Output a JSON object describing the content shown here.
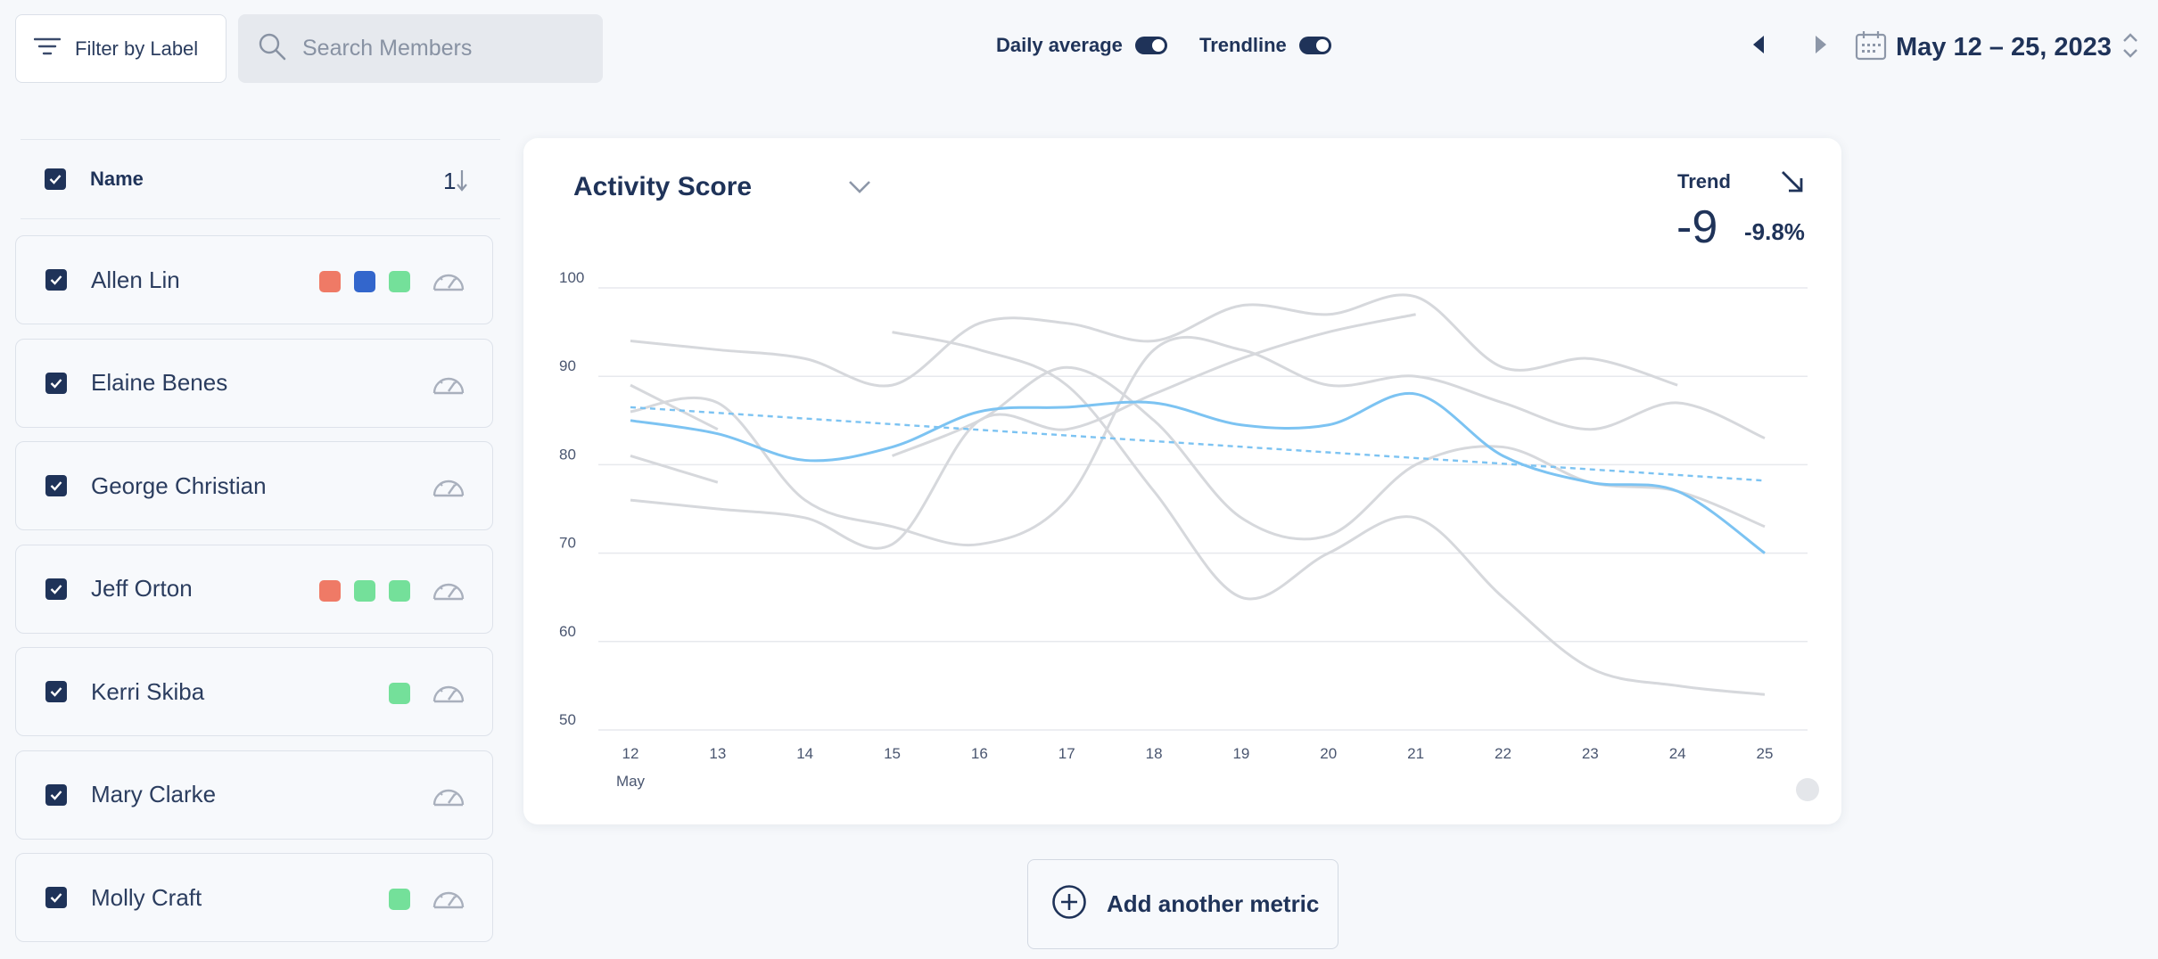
{
  "toolbar": {
    "filter_label": "Filter by Label",
    "search_placeholder": "Search Members",
    "daily_average_label": "Daily average",
    "trendline_label": "Trendline",
    "date_range": "May 12 – 25, 2023"
  },
  "member_list": {
    "header_label": "Name",
    "sort_label": "1",
    "members": [
      {
        "name": "Allen Lin",
        "labels": [
          "#ef7a66",
          "#3366cc",
          "#74e09a"
        ]
      },
      {
        "name": "Elaine Benes",
        "labels": []
      },
      {
        "name": "George Christian",
        "labels": []
      },
      {
        "name": "Jeff Orton",
        "labels": [
          "#ef7a66",
          "#74e09a",
          "#74e09a"
        ]
      },
      {
        "name": "Kerri Skiba",
        "labels": [
          "#74e09a"
        ]
      },
      {
        "name": "Mary Clarke",
        "labels": []
      },
      {
        "name": "Molly Craft",
        "labels": [
          "#74e09a"
        ]
      }
    ]
  },
  "metric": {
    "title": "Activity Score",
    "trend_label": "Trend",
    "trend_value": "-9",
    "trend_percent": "-9.8%"
  },
  "chart_data": {
    "type": "line",
    "x": [
      "12",
      "13",
      "14",
      "15",
      "16",
      "17",
      "18",
      "19",
      "20",
      "21",
      "22",
      "23",
      "24",
      "25"
    ],
    "x_sublabel": "May",
    "ylim": [
      50,
      100
    ],
    "yticks": [
      100,
      90,
      80,
      70,
      60,
      50
    ],
    "grid": true,
    "colors": {
      "average": "#7cc3f2",
      "member": "#d6d8dc",
      "trend": "#7cc3f2"
    },
    "average": [
      85,
      83.5,
      80.5,
      82,
      86,
      86.5,
      87,
      84.5,
      84.5,
      88,
      81,
      78,
      77,
      70
    ],
    "trendline": [
      86.5,
      78.2
    ],
    "members": [
      [
        94,
        93,
        92,
        89,
        96,
        96,
        94,
        98,
        97,
        99,
        91,
        92,
        89,
        null
      ],
      [
        76,
        75,
        74,
        71,
        85,
        84,
        88,
        92,
        95,
        97,
        null,
        null,
        null,
        null
      ],
      [
        89,
        84,
        null,
        null,
        null,
        null,
        null,
        null,
        null,
        null,
        null,
        null,
        null,
        null
      ],
      [
        81,
        78,
        null,
        null,
        null,
        null,
        null,
        null,
        null,
        null,
        null,
        null,
        null,
        null
      ],
      [
        null,
        null,
        null,
        95,
        93,
        89,
        77,
        65,
        70,
        74,
        65,
        57,
        55,
        54
      ],
      [
        86,
        87,
        76,
        73,
        71,
        76,
        93,
        93,
        89,
        90,
        87,
        84,
        87,
        83
      ],
      [
        null,
        null,
        null,
        81,
        85,
        91,
        85,
        74,
        72,
        80,
        82,
        78,
        77,
        73
      ]
    ]
  },
  "add_metric": {
    "label": "Add another metric"
  }
}
